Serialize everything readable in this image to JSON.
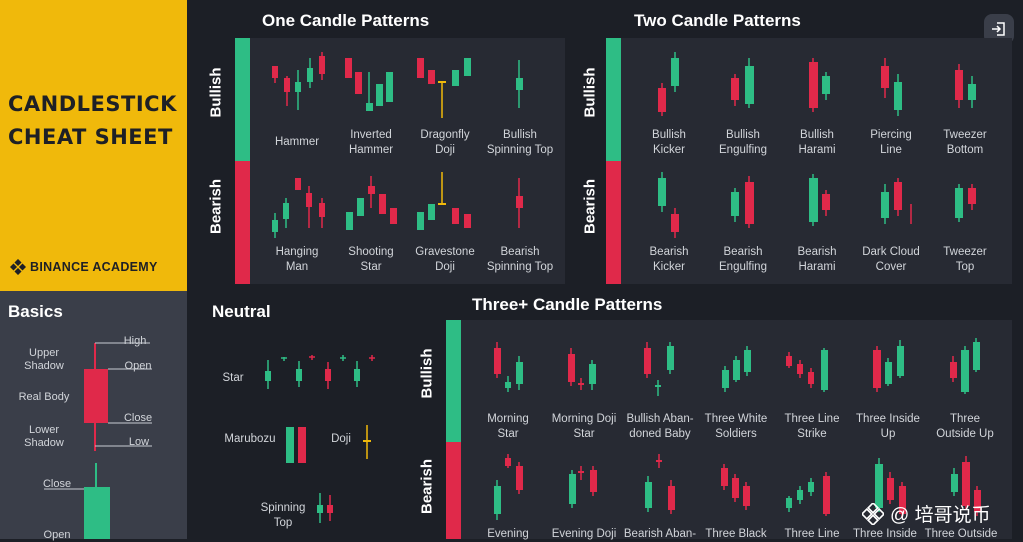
{
  "header": {
    "title_line1": "CANDLESTICK",
    "title_line2": "CHEAT SHEET",
    "brand": "BINANCE ACADEMY"
  },
  "basics": {
    "title": "Basics",
    "labels": {
      "upper_shadow": "Upper\nShadow",
      "real_body": "Real Body",
      "lower_shadow": "Lower\nShadow",
      "high": "High",
      "open": "Open",
      "close": "Close",
      "low": "Low",
      "close2": "Close",
      "open2": "Open"
    }
  },
  "sections": {
    "one": "One Candle Patterns",
    "two": "Two Candle Patterns",
    "neutral": "Neutral",
    "three": "Three+ Candle Patterns",
    "bullish": "Bullish",
    "bearish": "Bearish"
  },
  "one_bullish": [
    "Hammer",
    "Inverted\nHammer",
    "Dragonfly\nDoji",
    "Bullish\nSpinning Top"
  ],
  "one_bearish": [
    "Hanging\nMan",
    "Shooting\nStar",
    "Gravestone\nDoji",
    "Bearish\nSpinning Top"
  ],
  "two_bullish": [
    "Bullish\nKicker",
    "Bullish\nEngulfing",
    "Bullish\nHarami",
    "Piercing\nLine",
    "Tweezer\nBottom"
  ],
  "two_bearish": [
    "Bearish\nKicker",
    "Bearish\nEngulfing",
    "Bearish\nHarami",
    "Dark Cloud\nCover",
    "Tweezer\nTop"
  ],
  "neutral": {
    "star": "Star",
    "marubozu": "Marubozu",
    "doji": "Doji",
    "spinning_top": "Spinning\nTop"
  },
  "three_bullish": [
    "Morning\nStar",
    "Morning Doji\nStar",
    "Bullish Aban-\ndoned Baby",
    "Three White\nSoldiers",
    "Three Line\nStrike",
    "Three Inside\nUp",
    "Three\nOutside Up"
  ],
  "three_bearish": [
    "Evening",
    "Evening Doji",
    "Bearish Aban-",
    "Three Black",
    "Three Line",
    "Three Inside",
    "Three Outside"
  ],
  "watermark": "@ 培哥说币",
  "colors": {
    "green": "#2ebd85",
    "red": "#e0294a",
    "yellow": "#f0b90b",
    "bg": "#1c1f26",
    "panel": "#272a33"
  },
  "icons": {
    "logo": "binance-diamond-icon",
    "exit": "exit-fullscreen-icon",
    "wm": "binance-diamond-icon"
  }
}
